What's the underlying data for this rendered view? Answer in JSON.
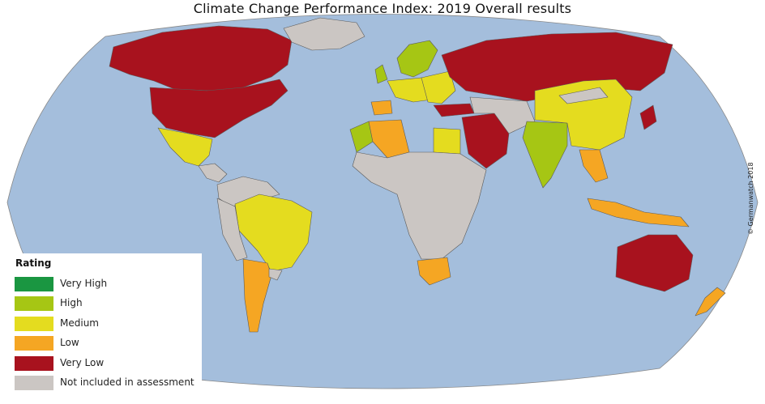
{
  "title": "Climate Change Performance Index: 2019 Overall results",
  "credit": "© Germanwatch 2018",
  "colors": {
    "ocean": "#a4bedc",
    "very_high": "#1a9641",
    "high": "#a6c614",
    "medium": "#e4dc1f",
    "low": "#f5a623",
    "very_low": "#a8121e",
    "not_included": "#cbc6c3",
    "border": "#5b5b5b"
  },
  "legend": {
    "title": "Rating",
    "items": [
      {
        "label": "Very High",
        "color": "#1a9641"
      },
      {
        "label": "High",
        "color": "#a6c614"
      },
      {
        "label": "Medium",
        "color": "#e4dc1f"
      },
      {
        "label": "Low",
        "color": "#f5a623"
      },
      {
        "label": "Very Low",
        "color": "#a8121e"
      },
      {
        "label": "Not included in assessment",
        "color": "#cbc6c3"
      }
    ]
  }
}
